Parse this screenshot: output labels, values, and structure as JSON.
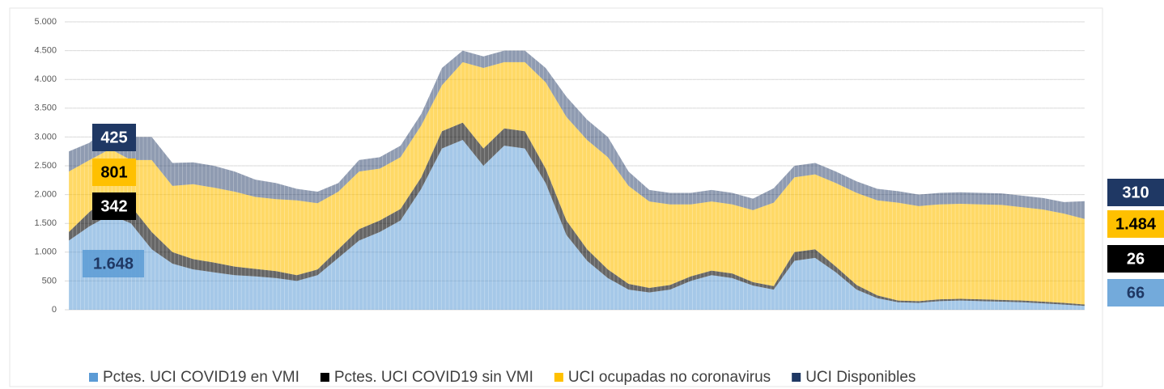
{
  "chart_data": {
    "type": "stacked-area",
    "categories": [
      null,
      null,
      null,
      null,
      null,
      null,
      null,
      null,
      null,
      null,
      null,
      null,
      null,
      null,
      null,
      null,
      null,
      null,
      null,
      null,
      null,
      null,
      null,
      null,
      null,
      null,
      null,
      null,
      null,
      null,
      null,
      null,
      null,
      null,
      null,
      null,
      null,
      null,
      null,
      null,
      null,
      null,
      null,
      null,
      null,
      null,
      null,
      null,
      null,
      null
    ],
    "ylim": [
      0,
      5000
    ],
    "yticks": [
      0,
      500,
      {
        "value": 1000,
        "label": "1.000"
      },
      {
        "value": 1500,
        "label": "1.500"
      },
      {
        "value": 2000,
        "label": "2.000"
      },
      {
        "value": 2500,
        "label": "2.500"
      },
      {
        "value": 3000,
        "label": "3.000"
      },
      {
        "value": 3500,
        "label": "3.500"
      },
      {
        "value": 4000,
        "label": "4.000"
      },
      {
        "value": 4500,
        "label": "4.500"
      },
      {
        "value": 5000,
        "label": "5.000"
      }
    ],
    "grid": true,
    "legend": "bottom",
    "series": [
      {
        "name": "Pctes. UCI COVID19 en VMI",
        "color": "#5b9bd5",
        "values": [
          1200,
          1450,
          1648,
          1500,
          1050,
          800,
          700,
          650,
          600,
          580,
          550,
          500,
          600,
          900,
          1200,
          1350,
          1550,
          2100,
          2800,
          2950,
          2500,
          2850,
          2800,
          2200,
          1300,
          850,
          550,
          350,
          300,
          350,
          500,
          600,
          550,
          420,
          350,
          850,
          900,
          650,
          350,
          200,
          130,
          120,
          150,
          160,
          150,
          140,
          130,
          110,
          90,
          66
        ],
        "value_labels": [
          null,
          null,
          "1.648",
          null,
          null,
          null,
          null,
          null,
          null,
          null,
          null,
          null,
          null,
          null,
          null,
          null,
          null,
          null,
          null,
          null,
          null,
          null,
          null,
          null,
          null,
          null,
          null,
          null,
          null,
          null,
          null,
          null,
          null,
          null,
          null,
          null,
          null,
          null,
          null,
          null,
          null,
          null,
          null,
          null,
          null,
          null,
          null,
          null,
          null,
          "66"
        ]
      },
      {
        "name": "Pctes. UCI COVID19 sin VMI",
        "color": "#000000",
        "values": [
          150,
          250,
          342,
          300,
          300,
          200,
          180,
          170,
          150,
          130,
          120,
          100,
          100,
          150,
          200,
          200,
          200,
          200,
          300,
          300,
          300,
          300,
          300,
          250,
          250,
          200,
          150,
          100,
          80,
          80,
          80,
          80,
          80,
          60,
          60,
          150,
          150,
          100,
          80,
          50,
          30,
          30,
          30,
          30,
          30,
          30,
          30,
          30,
          30,
          26
        ],
        "value_labels": [
          null,
          null,
          "342",
          null,
          null,
          null,
          null,
          null,
          null,
          null,
          null,
          null,
          null,
          null,
          null,
          null,
          null,
          null,
          null,
          null,
          null,
          null,
          null,
          null,
          null,
          null,
          null,
          null,
          null,
          null,
          null,
          null,
          null,
          null,
          null,
          null,
          null,
          null,
          null,
          null,
          null,
          null,
          null,
          null,
          null,
          null,
          null,
          null,
          null,
          "26"
        ]
      },
      {
        "name": "UCI ocupadas no coronavirus",
        "color": "#ffc000",
        "values": [
          1050,
          900,
          801,
          800,
          1250,
          1150,
          1300,
          1300,
          1300,
          1250,
          1250,
          1300,
          1150,
          1000,
          1000,
          900,
          900,
          900,
          800,
          1050,
          1400,
          1150,
          1200,
          1500,
          1800,
          1900,
          1950,
          1700,
          1500,
          1400,
          1250,
          1200,
          1200,
          1250,
          1450,
          1300,
          1300,
          1450,
          1600,
          1650,
          1700,
          1650,
          1650,
          1650,
          1650,
          1650,
          1620,
          1600,
          1550,
          1484
        ],
        "value_labels": [
          null,
          null,
          "801",
          null,
          null,
          null,
          null,
          null,
          null,
          null,
          null,
          null,
          null,
          null,
          null,
          null,
          null,
          null,
          null,
          null,
          null,
          null,
          null,
          null,
          null,
          null,
          null,
          null,
          null,
          null,
          null,
          null,
          null,
          null,
          null,
          null,
          null,
          null,
          null,
          null,
          null,
          null,
          null,
          null,
          null,
          null,
          null,
          null,
          null,
          "1.484"
        ]
      },
      {
        "name": "UCI Disponibles",
        "color": "#1f3864",
        "values": [
          350,
          300,
          425,
          400,
          400,
          400,
          380,
          380,
          350,
          300,
          280,
          200,
          200,
          150,
          200,
          200,
          200,
          200,
          300,
          200,
          200,
          200,
          200,
          250,
          350,
          350,
          350,
          250,
          200,
          200,
          200,
          200,
          200,
          200,
          250,
          200,
          200,
          200,
          200,
          200,
          200,
          200,
          200,
          200,
          200,
          200,
          200,
          200,
          200,
          310
        ],
        "value_labels": [
          null,
          null,
          "425",
          null,
          null,
          null,
          null,
          null,
          null,
          null,
          null,
          null,
          null,
          null,
          null,
          null,
          null,
          null,
          null,
          null,
          null,
          null,
          null,
          null,
          null,
          null,
          null,
          null,
          null,
          null,
          null,
          null,
          null,
          null,
          null,
          null,
          null,
          null,
          null,
          null,
          null,
          null,
          null,
          null,
          null,
          null,
          null,
          null,
          null,
          "310"
        ]
      }
    ]
  }
}
